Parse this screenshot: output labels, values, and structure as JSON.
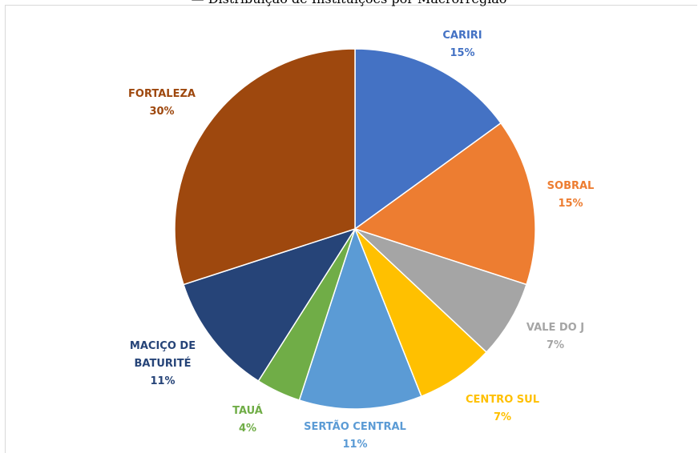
{
  "chart_data": {
    "type": "pie",
    "title": "— Distribuição de Instituições por Macrorregião",
    "start_angle_deg": 0,
    "direction": "clockwise",
    "slices": [
      {
        "label": "CARIRI",
        "value": 15,
        "pct_label": "15%",
        "color": "#4472C4",
        "label_color": "#4472C4"
      },
      {
        "label": "SOBRAL",
        "value": 15,
        "pct_label": "15%",
        "color": "#ED7D31",
        "label_color": "#ED7D31"
      },
      {
        "label": "VALE DO J",
        "value": 7,
        "pct_label": "7%",
        "color": "#A5A5A5",
        "label_color": "#A5A5A5"
      },
      {
        "label": "CENTRO SUL",
        "value": 7,
        "pct_label": "7%",
        "color": "#FFC000",
        "label_color": "#FFC000"
      },
      {
        "label": "SERTÃO CENTRAL",
        "value": 11,
        "pct_label": "11%",
        "color": "#5B9BD5",
        "label_color": "#5B9BD5"
      },
      {
        "label": "TAUÁ",
        "value": 4,
        "pct_label": "4%",
        "color": "#70AD47",
        "label_color": "#70AD47"
      },
      {
        "label": "MACIÇO DE BATURITÉ",
        "value": 11,
        "pct_label": "11%",
        "color": "#264478",
        "label_color": "#264478"
      },
      {
        "label": "FORTALEZA",
        "value": 30,
        "pct_label": "30%",
        "color": "#9E480E",
        "label_color": "#9E480E"
      }
    ]
  }
}
